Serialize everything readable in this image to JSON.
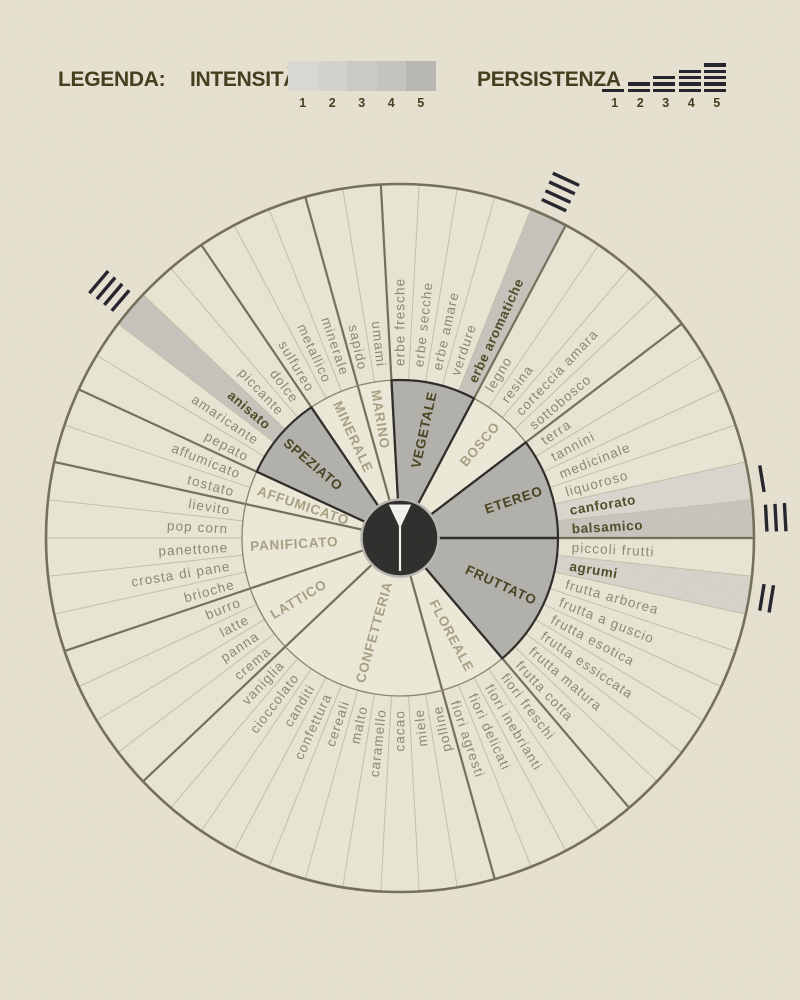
{
  "legend": {
    "title": "LEGENDA:",
    "intensity": {
      "label": "INTENSITÀ",
      "scale": [
        {
          "level": "1",
          "color": "#d8d7d1"
        },
        {
          "level": "2",
          "color": "#d2d1cb"
        },
        {
          "level": "3",
          "color": "#cbcac5"
        },
        {
          "level": "4",
          "color": "#c4c3bf"
        },
        {
          "level": "5",
          "color": "#b8b7b4"
        }
      ]
    },
    "persistence": {
      "label": "PERSISTENZA",
      "scale": [
        {
          "level": "1",
          "lines": 1
        },
        {
          "level": "2",
          "lines": 2
        },
        {
          "level": "3",
          "lines": 3
        },
        {
          "level": "4",
          "lines": 4
        },
        {
          "level": "5",
          "lines": 5
        }
      ]
    }
  },
  "wheel": {
    "center_icon": "martini-glass",
    "colors": {
      "page_bg": "#e7e2d2",
      "ring_cream": "#eae6d5",
      "inner_cream": "#edead9",
      "highlight_wedge": "#b2b1ab",
      "dark_outline": "#2d2c2a",
      "olive_line": "#75705a",
      "thin_line": "#c5c0ab",
      "item_text": "#8c8879",
      "item_text_bold": "#514c28",
      "cat_text": "#a8a184",
      "cat_text_bold": "#494322",
      "center_fill": "#2f2e2c",
      "center_ring": "#b9b8b2",
      "glass": "#f3f2ed",
      "marks": "#24242c"
    },
    "categories": [
      {
        "name": "VEGETALE",
        "highlighted": true,
        "items": [
          {
            "label": "erbe fresche"
          },
          {
            "label": "erbe secche"
          },
          {
            "label": "erbe amare"
          },
          {
            "label": "verdure"
          },
          {
            "label": "erbe aromatiche",
            "highlighted": true,
            "shade": "#c6c4bc",
            "intensity": 4,
            "persistence": 4
          }
        ]
      },
      {
        "name": "BOSCO",
        "highlighted": false,
        "items": [
          {
            "label": "legno"
          },
          {
            "label": "resina"
          },
          {
            "label": "corteccia amara"
          },
          {
            "label": "sottobosco"
          }
        ]
      },
      {
        "name": "ETEREO",
        "highlighted": true,
        "items": [
          {
            "label": "terra"
          },
          {
            "label": "tannini"
          },
          {
            "label": "medicinale"
          },
          {
            "label": "liquoroso"
          },
          {
            "label": "canforato",
            "highlighted": true,
            "shade": "#d9d7cf",
            "intensity": 2,
            "persistence": 1
          },
          {
            "label": "balsamico",
            "highlighted": true,
            "shade": "#c7c5be",
            "intensity": 4,
            "persistence": 3
          }
        ]
      },
      {
        "name": "FRUTTATO",
        "highlighted": true,
        "items": [
          {
            "label": "piccoli frutti"
          },
          {
            "label": "agrumi",
            "highlighted": true,
            "shade": "#d6d4cb",
            "intensity": 3,
            "persistence": 2
          },
          {
            "label": "frutta arborea"
          },
          {
            "label": "frutta a guscio"
          },
          {
            "label": "frutta esotica"
          },
          {
            "label": "frutta essiccata"
          },
          {
            "label": "frutta matura"
          },
          {
            "label": "frutta cotta"
          }
        ]
      },
      {
        "name": "FLOREALE",
        "highlighted": false,
        "items": [
          {
            "label": "fiori freschi"
          },
          {
            "label": "fiori inebrianti"
          },
          {
            "label": "fiori delicati"
          },
          {
            "label": "fiori agresti"
          }
        ]
      },
      {
        "name": "CONFETTERIA",
        "highlighted": false,
        "items": [
          {
            "label": "polline"
          },
          {
            "label": "miele"
          },
          {
            "label": "cacao"
          },
          {
            "label": "caramello"
          },
          {
            "label": "malto"
          },
          {
            "label": "cereali"
          },
          {
            "label": "confettura"
          },
          {
            "label": "canditi"
          },
          {
            "label": "cioccolato"
          },
          {
            "label": "vaniglia"
          }
        ]
      },
      {
        "name": "LATTICO",
        "highlighted": false,
        "items": [
          {
            "label": "crema"
          },
          {
            "label": "panna"
          },
          {
            "label": "latte"
          },
          {
            "label": "burro"
          }
        ]
      },
      {
        "name": "PANIFICATO",
        "highlighted": false,
        "items": [
          {
            "label": "brioche"
          },
          {
            "label": "crosta di pane"
          },
          {
            "label": "panettone"
          },
          {
            "label": "pop corn"
          },
          {
            "label": "lievito"
          }
        ]
      },
      {
        "name": "AFFUMICATO",
        "highlighted": false,
        "items": [
          {
            "label": "tostato"
          },
          {
            "label": "affumicato"
          }
        ]
      },
      {
        "name": "SPEZIATO",
        "highlighted": true,
        "items": [
          {
            "label": "pepato"
          },
          {
            "label": "amaricante"
          },
          {
            "label": "anisato",
            "highlighted": true,
            "shade": "#c6c4bc",
            "intensity": 4,
            "persistence": 4
          },
          {
            "label": "piccante"
          },
          {
            "label": "dolce"
          }
        ]
      },
      {
        "name": "MINERALE",
        "highlighted": false,
        "items": [
          {
            "label": "sulfureo"
          },
          {
            "label": "metallico"
          },
          {
            "label": "minerale"
          }
        ]
      },
      {
        "name": "MARINO",
        "highlighted": false,
        "items": [
          {
            "label": "sapido"
          },
          {
            "label": "umami"
          }
        ]
      }
    ]
  }
}
